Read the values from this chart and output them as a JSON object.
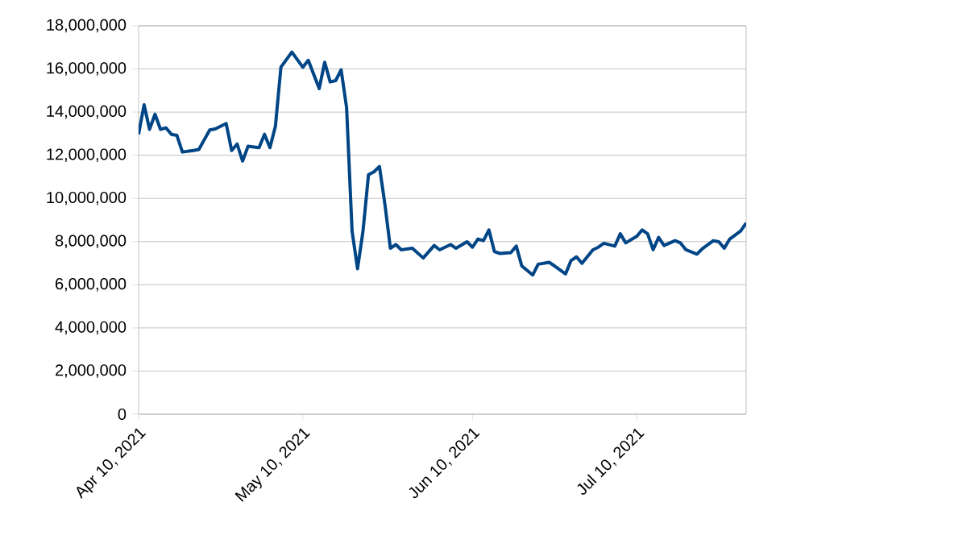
{
  "chart_data": {
    "type": "line",
    "x": [
      "2021-04-10",
      "2021-04-11",
      "2021-04-12",
      "2021-04-13",
      "2021-04-14",
      "2021-04-15",
      "2021-04-16",
      "2021-04-17",
      "2021-04-18",
      "2021-04-20",
      "2021-04-21",
      "2021-04-23",
      "2021-04-24",
      "2021-04-26",
      "2021-04-27",
      "2021-04-28",
      "2021-04-29",
      "2021-04-30",
      "2021-05-02",
      "2021-05-03",
      "2021-05-04",
      "2021-05-05",
      "2021-05-06",
      "2021-05-08",
      "2021-05-10",
      "2021-05-11",
      "2021-05-13",
      "2021-05-14",
      "2021-05-15",
      "2021-05-16",
      "2021-05-17",
      "2021-05-18",
      "2021-05-19",
      "2021-05-20",
      "2021-05-21",
      "2021-05-22",
      "2021-05-23",
      "2021-05-24",
      "2021-05-25",
      "2021-05-26",
      "2021-05-27",
      "2021-05-28",
      "2021-05-30",
      "2021-06-01",
      "2021-06-03",
      "2021-06-04",
      "2021-06-06",
      "2021-06-07",
      "2021-06-09",
      "2021-06-10",
      "2021-06-11",
      "2021-06-12",
      "2021-06-13",
      "2021-06-14",
      "2021-06-15",
      "2021-06-17",
      "2021-06-18",
      "2021-06-19",
      "2021-06-21",
      "2021-06-22",
      "2021-06-24",
      "2021-06-25",
      "2021-06-27",
      "2021-06-28",
      "2021-06-29",
      "2021-06-30",
      "2021-07-02",
      "2021-07-03",
      "2021-07-04",
      "2021-07-06",
      "2021-07-07",
      "2021-07-08",
      "2021-07-10",
      "2021-07-11",
      "2021-07-12",
      "2021-07-13",
      "2021-07-14",
      "2021-07-15",
      "2021-07-17",
      "2021-07-18",
      "2021-07-19",
      "2021-07-21",
      "2021-07-22",
      "2021-07-24",
      "2021-07-25",
      "2021-07-26",
      "2021-07-27",
      "2021-07-29",
      "2021-07-30"
    ],
    "series": [
      {
        "color": "#004586",
        "values": [
          12970000,
          14340000,
          13200000,
          13900000,
          13200000,
          13270000,
          12970000,
          12920000,
          12150000,
          12220000,
          12270000,
          13170000,
          13220000,
          13470000,
          12220000,
          12520000,
          11730000,
          12420000,
          12350000,
          12970000,
          12350000,
          13350000,
          16080000,
          16780000,
          16080000,
          16400000,
          15090000,
          16310000,
          15400000,
          15460000,
          15960000,
          14210000,
          8490000,
          6740000,
          8490000,
          11100000,
          11230000,
          11480000,
          9730000,
          7690000,
          7860000,
          7620000,
          7690000,
          7240000,
          7820000,
          7620000,
          7860000,
          7690000,
          7990000,
          7740000,
          8120000,
          8040000,
          8540000,
          7540000,
          7450000,
          7490000,
          7790000,
          6870000,
          6450000,
          6950000,
          7040000,
          6870000,
          6500000,
          7120000,
          7290000,
          6990000,
          7620000,
          7740000,
          7920000,
          7790000,
          8360000,
          7940000,
          8240000,
          8540000,
          8360000,
          7620000,
          8190000,
          7820000,
          8040000,
          7940000,
          7620000,
          7420000,
          7670000,
          8040000,
          7990000,
          7690000,
          8120000,
          8490000,
          8860000
        ]
      }
    ],
    "xlim": [
      "2021-04-10",
      "2021-07-30"
    ],
    "xticks": [
      {
        "value": "2021-04-10",
        "label": "Apr 10, 2021"
      },
      {
        "value": "2021-05-10",
        "label": "May 10, 2021"
      },
      {
        "value": "2021-06-10",
        "label": "Jun 10, 2021"
      },
      {
        "value": "2021-07-10",
        "label": "Jul 10, 2021"
      }
    ],
    "ylim": [
      0,
      18000000
    ],
    "yticks": [
      {
        "value": 0,
        "label": "0"
      },
      {
        "value": 2000000,
        "label": "2,000,000"
      },
      {
        "value": 4000000,
        "label": "4,000,000"
      },
      {
        "value": 6000000,
        "label": "6,000,000"
      },
      {
        "value": 8000000,
        "label": "8,000,000"
      },
      {
        "value": 10000000,
        "label": "10,000,000"
      },
      {
        "value": 12000000,
        "label": "12,000,000"
      },
      {
        "value": 14000000,
        "label": "14,000,000"
      },
      {
        "value": 16000000,
        "label": "16,000,000"
      },
      {
        "value": 18000000,
        "label": "18,000,000"
      }
    ],
    "grid": "y",
    "marker": "none",
    "line_style": "solid"
  }
}
